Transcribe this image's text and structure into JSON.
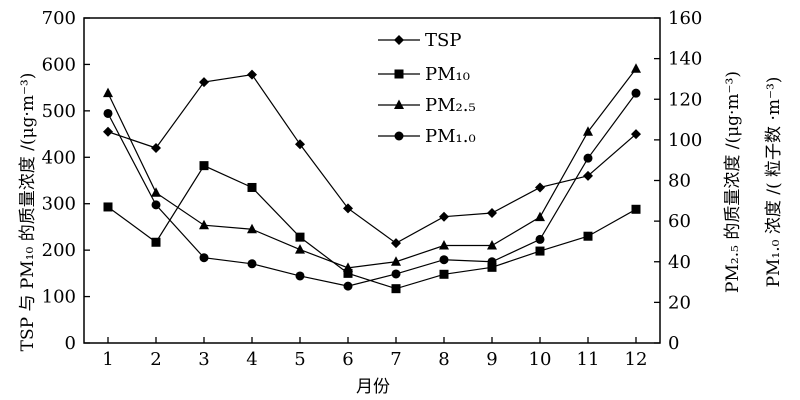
{
  "chart_data": {
    "type": "line",
    "xlabel": "月份",
    "ylabel_left": "TSP 与 PM₁₀ 的质量浓度 /(μg·m⁻³)",
    "ylabel_right_1": "PM₂.₅ 的质量浓度 /(μg·m⁻³)",
    "ylabel_right_2": "PM₁.₀ 浓度 /( 粒子数 ·m⁻³)",
    "x": [
      1,
      2,
      3,
      4,
      5,
      6,
      7,
      8,
      9,
      10,
      11,
      12
    ],
    "xlim": [
      0.5,
      12.5
    ],
    "ylim_left": [
      0,
      700
    ],
    "ylim_right": [
      0,
      160
    ],
    "yticks_left": [
      0,
      100,
      200,
      300,
      400,
      500,
      600,
      700
    ],
    "yticks_right": [
      0,
      20,
      40,
      60,
      80,
      100,
      120,
      140,
      160
    ],
    "grid": false,
    "legend": "top-center",
    "series": [
      {
        "name": "TSP",
        "axis": "left",
        "marker": "diamond",
        "values": [
          455,
          420,
          562,
          578,
          428,
          290,
          215,
          272,
          280,
          335,
          360,
          450
        ]
      },
      {
        "name": "PM₁₀",
        "axis": "left",
        "marker": "square",
        "values": [
          293,
          217,
          382,
          335,
          228,
          150,
          117,
          148,
          163,
          198,
          230,
          288
        ]
      },
      {
        "name": "PM₂.₅",
        "axis": "right",
        "marker": "triangle",
        "values": [
          123,
          74,
          58,
          56,
          46,
          37,
          40,
          48,
          48,
          62,
          104,
          135
        ]
      },
      {
        "name": "PM₁.₀",
        "axis": "right",
        "marker": "circle",
        "values": [
          113,
          68,
          42,
          39,
          33,
          28,
          34,
          41,
          40,
          51,
          91,
          123
        ]
      }
    ]
  }
}
